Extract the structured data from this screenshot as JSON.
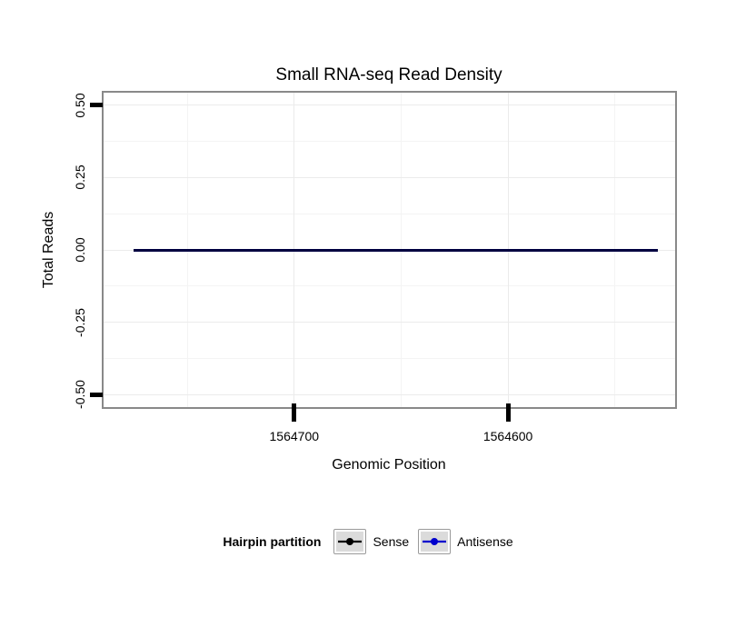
{
  "title": "Small RNA-seq Read Density",
  "axes": {
    "x": {
      "label": "Genomic Position",
      "tick_labels": [
        "1564700",
        "1564600"
      ]
    },
    "y": {
      "label": "Total Reads",
      "tick_labels": [
        "0.50",
        "0.25",
        "0.00",
        "-0.25",
        "-0.50"
      ]
    }
  },
  "legend": {
    "title": "Hairpin partition",
    "items": [
      {
        "label": "Sense",
        "color": "#000000"
      },
      {
        "label": "Antisense",
        "color": "#0000CD"
      }
    ]
  },
  "chart_data": {
    "type": "line",
    "title": "Small RNA-seq Read Density",
    "xlabel": "Genomic Position",
    "ylabel": "Total Reads",
    "x_axis_reversed": true,
    "x_range": [
      1564790,
      1564521
    ],
    "x_ticks": [
      1564700,
      1564600
    ],
    "ylim": [
      -0.5,
      0.5
    ],
    "y_ticks": [
      0.5,
      0.25,
      0,
      -0.25,
      -0.5
    ],
    "grid": true,
    "legend_title": "Hairpin partition",
    "legend_position": "bottom",
    "series": [
      {
        "name": "Sense",
        "color": "#000000",
        "x": [
          1564775,
          1564530
        ],
        "y": [
          0,
          0
        ]
      },
      {
        "name": "Antisense",
        "color": "#0000CD",
        "x": [
          1564775,
          1564530
        ],
        "y": [
          0,
          0
        ]
      }
    ],
    "rendered_line_color": "#000040"
  }
}
